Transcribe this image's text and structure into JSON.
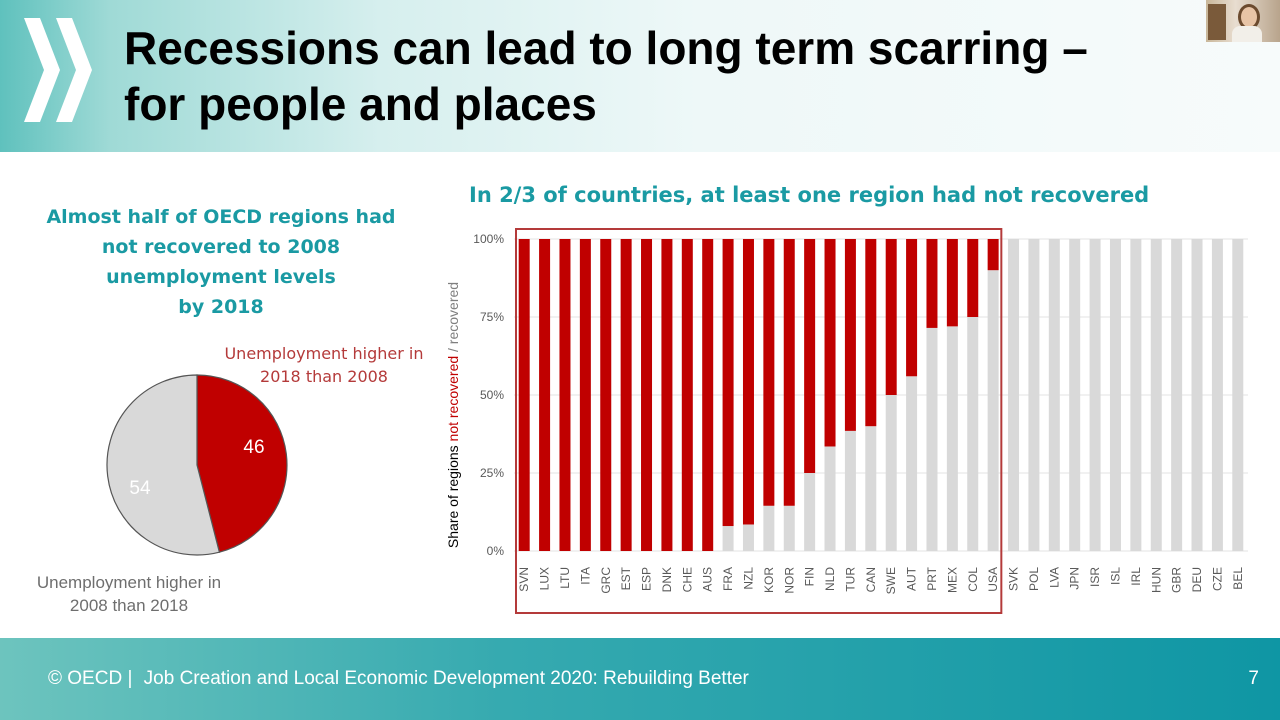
{
  "slide": {
    "title_line1": "Recessions can lead to long term scarring –",
    "title_line2": "for people and places",
    "page_number": "7"
  },
  "footer": {
    "copyright": "© OECD |",
    "report_title": "Job Creation and Local Economic Development 2020: Rebuilding Better"
  },
  "left_panel": {
    "heading": [
      "Almost half of OECD regions had",
      "not recovered to 2008",
      "unemployment levels",
      "by 2018"
    ],
    "label_red": [
      "Unemployment higher in",
      "2018 than 2008"
    ],
    "label_grey": [
      "Unemployment higher in",
      "2008 than 2018"
    ]
  },
  "right_panel": {
    "heading": "In 2/3 of countries, at least one region had not recovered"
  },
  "colors": {
    "not_recovered": "#c00000",
    "recovered": "#d9d9d9",
    "heading_teal": "#1a9aa3",
    "highlight_box": "#b43a3a"
  },
  "chart_data": [
    {
      "type": "pie",
      "slices": [
        {
          "label": "46",
          "value": 46,
          "color": "#c00000"
        },
        {
          "label": "54",
          "value": 54,
          "color": "#d9d9d9"
        }
      ]
    },
    {
      "type": "bar",
      "stacked": true,
      "ylabel_parts": [
        "Share of regions ",
        "not recovered",
        " / recovered"
      ],
      "ylim": [
        0,
        100
      ],
      "yticks": [
        "0%",
        "25%",
        "50%",
        "75%",
        "100%"
      ],
      "categories": [
        "SVN",
        "LUX",
        "LTU",
        "ITA",
        "GRC",
        "EST",
        "ESP",
        "DNK",
        "CHE",
        "AUS",
        "FRA",
        "NZL",
        "KOR",
        "NOR",
        "FIN",
        "NLD",
        "TUR",
        "CAN",
        "SWE",
        "AUT",
        "PRT",
        "MEX",
        "COL",
        "USA",
        "SVK",
        "POL",
        "LVA",
        "JPN",
        "ISR",
        "ISL",
        "IRL",
        "HUN",
        "GBR",
        "DEU",
        "CZE",
        "BEL"
      ],
      "series": [
        {
          "name": "not recovered",
          "values": [
            100,
            100,
            100,
            100,
            100,
            100,
            100,
            100,
            100,
            100,
            92,
            91.5,
            85.5,
            85.5,
            75,
            66.5,
            61.5,
            60,
            50,
            44,
            28.5,
            28,
            25,
            10,
            0,
            0,
            0,
            0,
            0,
            0,
            0,
            0,
            0,
            0,
            0,
            0
          ]
        },
        {
          "name": "recovered",
          "values": [
            0,
            0,
            0,
            0,
            0,
            0,
            0,
            0,
            0,
            0,
            8,
            8.5,
            14.5,
            14.5,
            25,
            33.5,
            38.5,
            40,
            50,
            56,
            71.5,
            72,
            75,
            90,
            100,
            100,
            100,
            100,
            100,
            100,
            100,
            100,
            100,
            100,
            100,
            100
          ]
        }
      ],
      "grid": true,
      "highlight_categories": [
        "SVN",
        "USA"
      ]
    }
  ]
}
